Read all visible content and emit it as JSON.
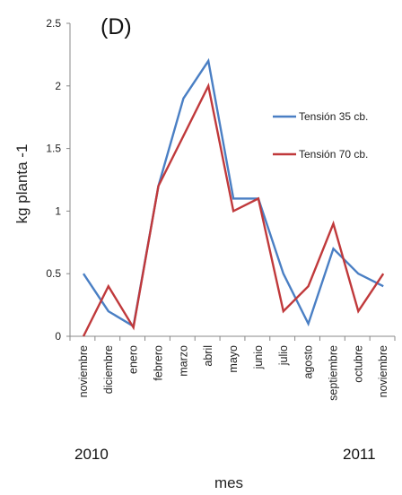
{
  "chart_data": {
    "type": "line",
    "panel_label": "(D)",
    "xlabel": "mes",
    "ylabel": "kg planta -1",
    "ylim": [
      0,
      2.5
    ],
    "yticks": [
      "0",
      "0.5",
      "1",
      "1.5",
      "2",
      "2.5"
    ],
    "categories": [
      "noviembre",
      "diciembre",
      "enero",
      "febrero",
      "marzo",
      "abril",
      "mayo",
      "junio",
      "julio",
      "agosto",
      "septiembre",
      "octubre",
      "noviembre"
    ],
    "year_labels": {
      "start": "2010",
      "end": "2011"
    },
    "grid": false,
    "legend_position": "right",
    "series": [
      {
        "name": "Tensión 35 cb.",
        "color": "#4a7fc4",
        "values": [
          0.5,
          0.2,
          0.08,
          1.2,
          1.9,
          2.2,
          1.1,
          1.1,
          0.5,
          0.1,
          0.7,
          0.5,
          0.4
        ]
      },
      {
        "name": "Tensión 70 cb.",
        "color": "#c0393b",
        "values": [
          0.0,
          0.4,
          0.07,
          1.2,
          1.6,
          2.0,
          1.0,
          1.1,
          0.2,
          0.4,
          0.9,
          0.2,
          0.5
        ]
      }
    ]
  }
}
